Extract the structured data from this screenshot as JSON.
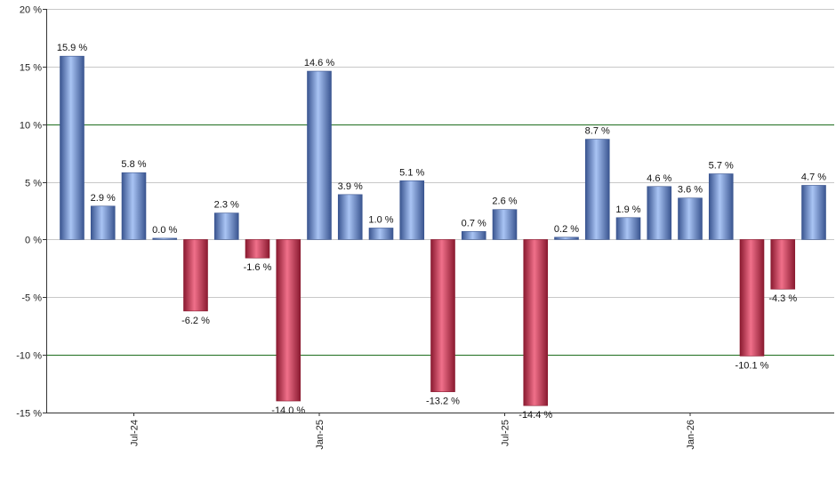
{
  "chart_data": {
    "type": "bar",
    "title": "",
    "xlabel": "",
    "ylabel": "",
    "ylim": [
      -15,
      20
    ],
    "y_ticks": [
      20,
      15,
      10,
      5,
      0,
      -5,
      -10,
      -15
    ],
    "y_tick_labels": [
      "20 %",
      "15 %",
      "10 %",
      "5 %",
      "0 %",
      "-5 %",
      "-10 %",
      "-15 %"
    ],
    "y_tick_format_suffix": " %",
    "highlight_lines": [
      10,
      -10
    ],
    "grid": true,
    "legend": "none",
    "x_tick_labels": [
      {
        "label": "Jul-24",
        "index": 2
      },
      {
        "label": "Jan-25",
        "index": 8
      },
      {
        "label": "Jul-25",
        "index": 14
      },
      {
        "label": "Jan-26",
        "index": 20
      }
    ],
    "values": [
      15.9,
      2.9,
      5.8,
      0.0,
      -6.2,
      2.3,
      -1.6,
      -14.0,
      14.6,
      3.9,
      1.0,
      5.1,
      -13.2,
      0.7,
      2.6,
      -14.4,
      0.2,
      8.7,
      1.9,
      4.6,
      3.6,
      5.7,
      -10.1,
      -4.3,
      4.7
    ],
    "data_labels": [
      "15.9 %",
      "2.9 %",
      "5.8 %",
      "0.0 %",
      "-6.2 %",
      "2.3 %",
      "-1.6 %",
      "-14.0 %",
      "14.6 %",
      "3.9 %",
      "1.0 %",
      "5.1 %",
      "-13.2 %",
      "0.7 %",
      "2.6 %",
      "-14.4 %",
      "0.2 %",
      "8.7 %",
      "1.9 %",
      "4.6 %",
      "3.6 %",
      "5.7 %",
      "-10.1 %",
      "-4.3 %",
      "4.7 %"
    ],
    "colors": {
      "positive_dark": "#3a5590",
      "positive_light": "#a9c4f4",
      "negative_dark": "#8a1a30",
      "negative_light": "#f0708a",
      "grid": "#c8c8c8",
      "highlight": "#1e6e1e",
      "axis": "#333333"
    }
  }
}
